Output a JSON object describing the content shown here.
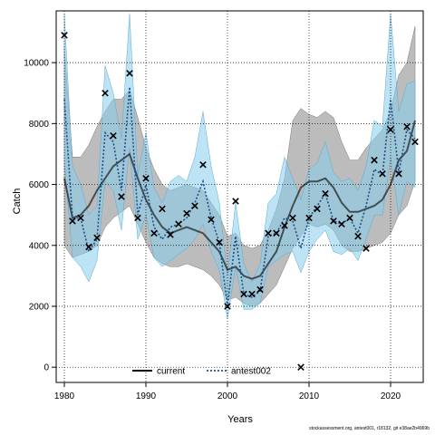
{
  "chart_data": {
    "type": "line",
    "xlabel": "Years",
    "ylabel": "Catch",
    "xlim": [
      1979,
      2024
    ],
    "ylim": [
      -500,
      11700
    ],
    "x_ticks": [
      1980,
      1990,
      2000,
      2010,
      2020
    ],
    "y_ticks": [
      0,
      2000,
      4000,
      6000,
      8000,
      10000
    ],
    "grid": true,
    "legend_placement": "bottom",
    "years": [
      1980,
      1981,
      1982,
      1983,
      1984,
      1985,
      1986,
      1987,
      1988,
      1989,
      1990,
      1991,
      1992,
      1993,
      1994,
      1995,
      1996,
      1997,
      1998,
      1999,
      2000,
      2001,
      2002,
      2003,
      2004,
      2005,
      2006,
      2007,
      2008,
      2009,
      2010,
      2011,
      2012,
      2013,
      2014,
      2015,
      2016,
      2017,
      2018,
      2019,
      2020,
      2021,
      2022,
      2023
    ],
    "series": [
      {
        "name": "current",
        "color": "#000000",
        "band_color": "#a6a6a6",
        "values": [
          6200,
          4900,
          5000,
          5300,
          5800,
          6200,
          6600,
          6800,
          7000,
          6200,
          5500,
          5000,
          4600,
          4400,
          4500,
          4600,
          4500,
          4400,
          4100,
          3800,
          3200,
          3300,
          3000,
          2900,
          3000,
          3400,
          3800,
          4600,
          5300,
          5900,
          6100,
          6100,
          6200,
          5900,
          5400,
          5100,
          5100,
          5200,
          5300,
          5500,
          6000,
          6800,
          7100,
          8100
        ],
        "lower": [
          4000,
          3600,
          3700,
          3800,
          4000,
          4600,
          4900,
          5100,
          5300,
          4700,
          4100,
          3600,
          3400,
          3300,
          3300,
          3400,
          3300,
          3200,
          3000,
          2700,
          2200,
          2300,
          2100,
          2000,
          2100,
          2400,
          2700,
          3300,
          3900,
          4300,
          4700,
          4600,
          4700,
          4500,
          4000,
          3800,
          3800,
          3900,
          4000,
          4100,
          4400,
          5000,
          5300,
          6100
        ],
        "upper": [
          10500,
          6900,
          6900,
          7300,
          7900,
          8400,
          8800,
          8800,
          9100,
          8200,
          7200,
          6500,
          6000,
          5800,
          5900,
          6000,
          5900,
          5800,
          5400,
          5000,
          4300,
          4400,
          4000,
          3900,
          4000,
          4500,
          5200,
          6200,
          8100,
          8500,
          8300,
          8200,
          8400,
          8200,
          7400,
          6800,
          6800,
          7200,
          7500,
          7800,
          8400,
          9600,
          10000,
          11200
        ]
      },
      {
        "name": "antest002",
        "color": "#1f4f8c",
        "band_color": "#87ceeb",
        "values": [
          8800,
          4900,
          4900,
          3800,
          4200,
          7700,
          7400,
          5800,
          9200,
          5000,
          6000,
          4600,
          4200,
          4600,
          4700,
          4900,
          5400,
          6100,
          4900,
          4100,
          2000,
          4300,
          2400,
          2300,
          2500,
          4300,
          4400,
          4900,
          4800,
          3900,
          4900,
          5300,
          5700,
          4800,
          4700,
          4900,
          4400,
          5300,
          6500,
          6300,
          8800,
          6400,
          7800,
          7500
        ],
        "lower": [
          6800,
          3600,
          3300,
          2800,
          3500,
          6100,
          5800,
          4500,
          7200,
          4200,
          5000,
          3600,
          3300,
          3500,
          3700,
          3900,
          4200,
          4700,
          3800,
          3200,
          1600,
          3300,
          1900,
          1900,
          2100,
          3300,
          3500,
          3700,
          3800,
          3100,
          3800,
          4200,
          4500,
          3800,
          3700,
          3900,
          3500,
          4200,
          5000,
          5000,
          6900,
          5000,
          6100,
          5900
        ],
        "upper": [
          11600,
          6600,
          6000,
          5000,
          5300,
          9900,
          9000,
          7500,
          11600,
          6300,
          7700,
          5900,
          5400,
          6100,
          6300,
          6100,
          6900,
          8400,
          6600,
          5400,
          3000,
          5400,
          3400,
          2800,
          3400,
          5400,
          5700,
          6900,
          6200,
          5500,
          6500,
          6700,
          7400,
          6400,
          6100,
          6200,
          5800,
          6600,
          8100,
          7900,
          11600,
          8400,
          9300,
          9400
        ]
      }
    ],
    "observed_points": {
      "marker": "x",
      "years": [
        1980,
        1981,
        1982,
        1983,
        1984,
        1985,
        1986,
        1987,
        1988,
        1989,
        1990,
        1991,
        1992,
        1993,
        1994,
        1995,
        1996,
        1997,
        1998,
        1999,
        2000,
        2001,
        2002,
        2003,
        2004,
        2005,
        2006,
        2007,
        2008,
        2009,
        2010,
        2011,
        2012,
        2013,
        2014,
        2015,
        2016,
        2017,
        2018,
        2019,
        2020,
        2021,
        2022,
        2023
      ],
      "values": [
        10900,
        4800,
        4900,
        3950,
        4250,
        9000,
        7600,
        5600,
        9650,
        4900,
        6200,
        4400,
        5200,
        4350,
        4700,
        5050,
        5300,
        6650,
        4850,
        4100,
        2000,
        5450,
        2400,
        2400,
        2550,
        4400,
        4400,
        4650,
        4900,
        0,
        4900,
        5200,
        5700,
        4800,
        4700,
        4900,
        4300,
        3900,
        6800,
        6350,
        7800,
        6350,
        7900,
        7400
      ]
    },
    "footnote": "stockassessment.org, antest001, r18132, git e38ae2b4969b"
  }
}
